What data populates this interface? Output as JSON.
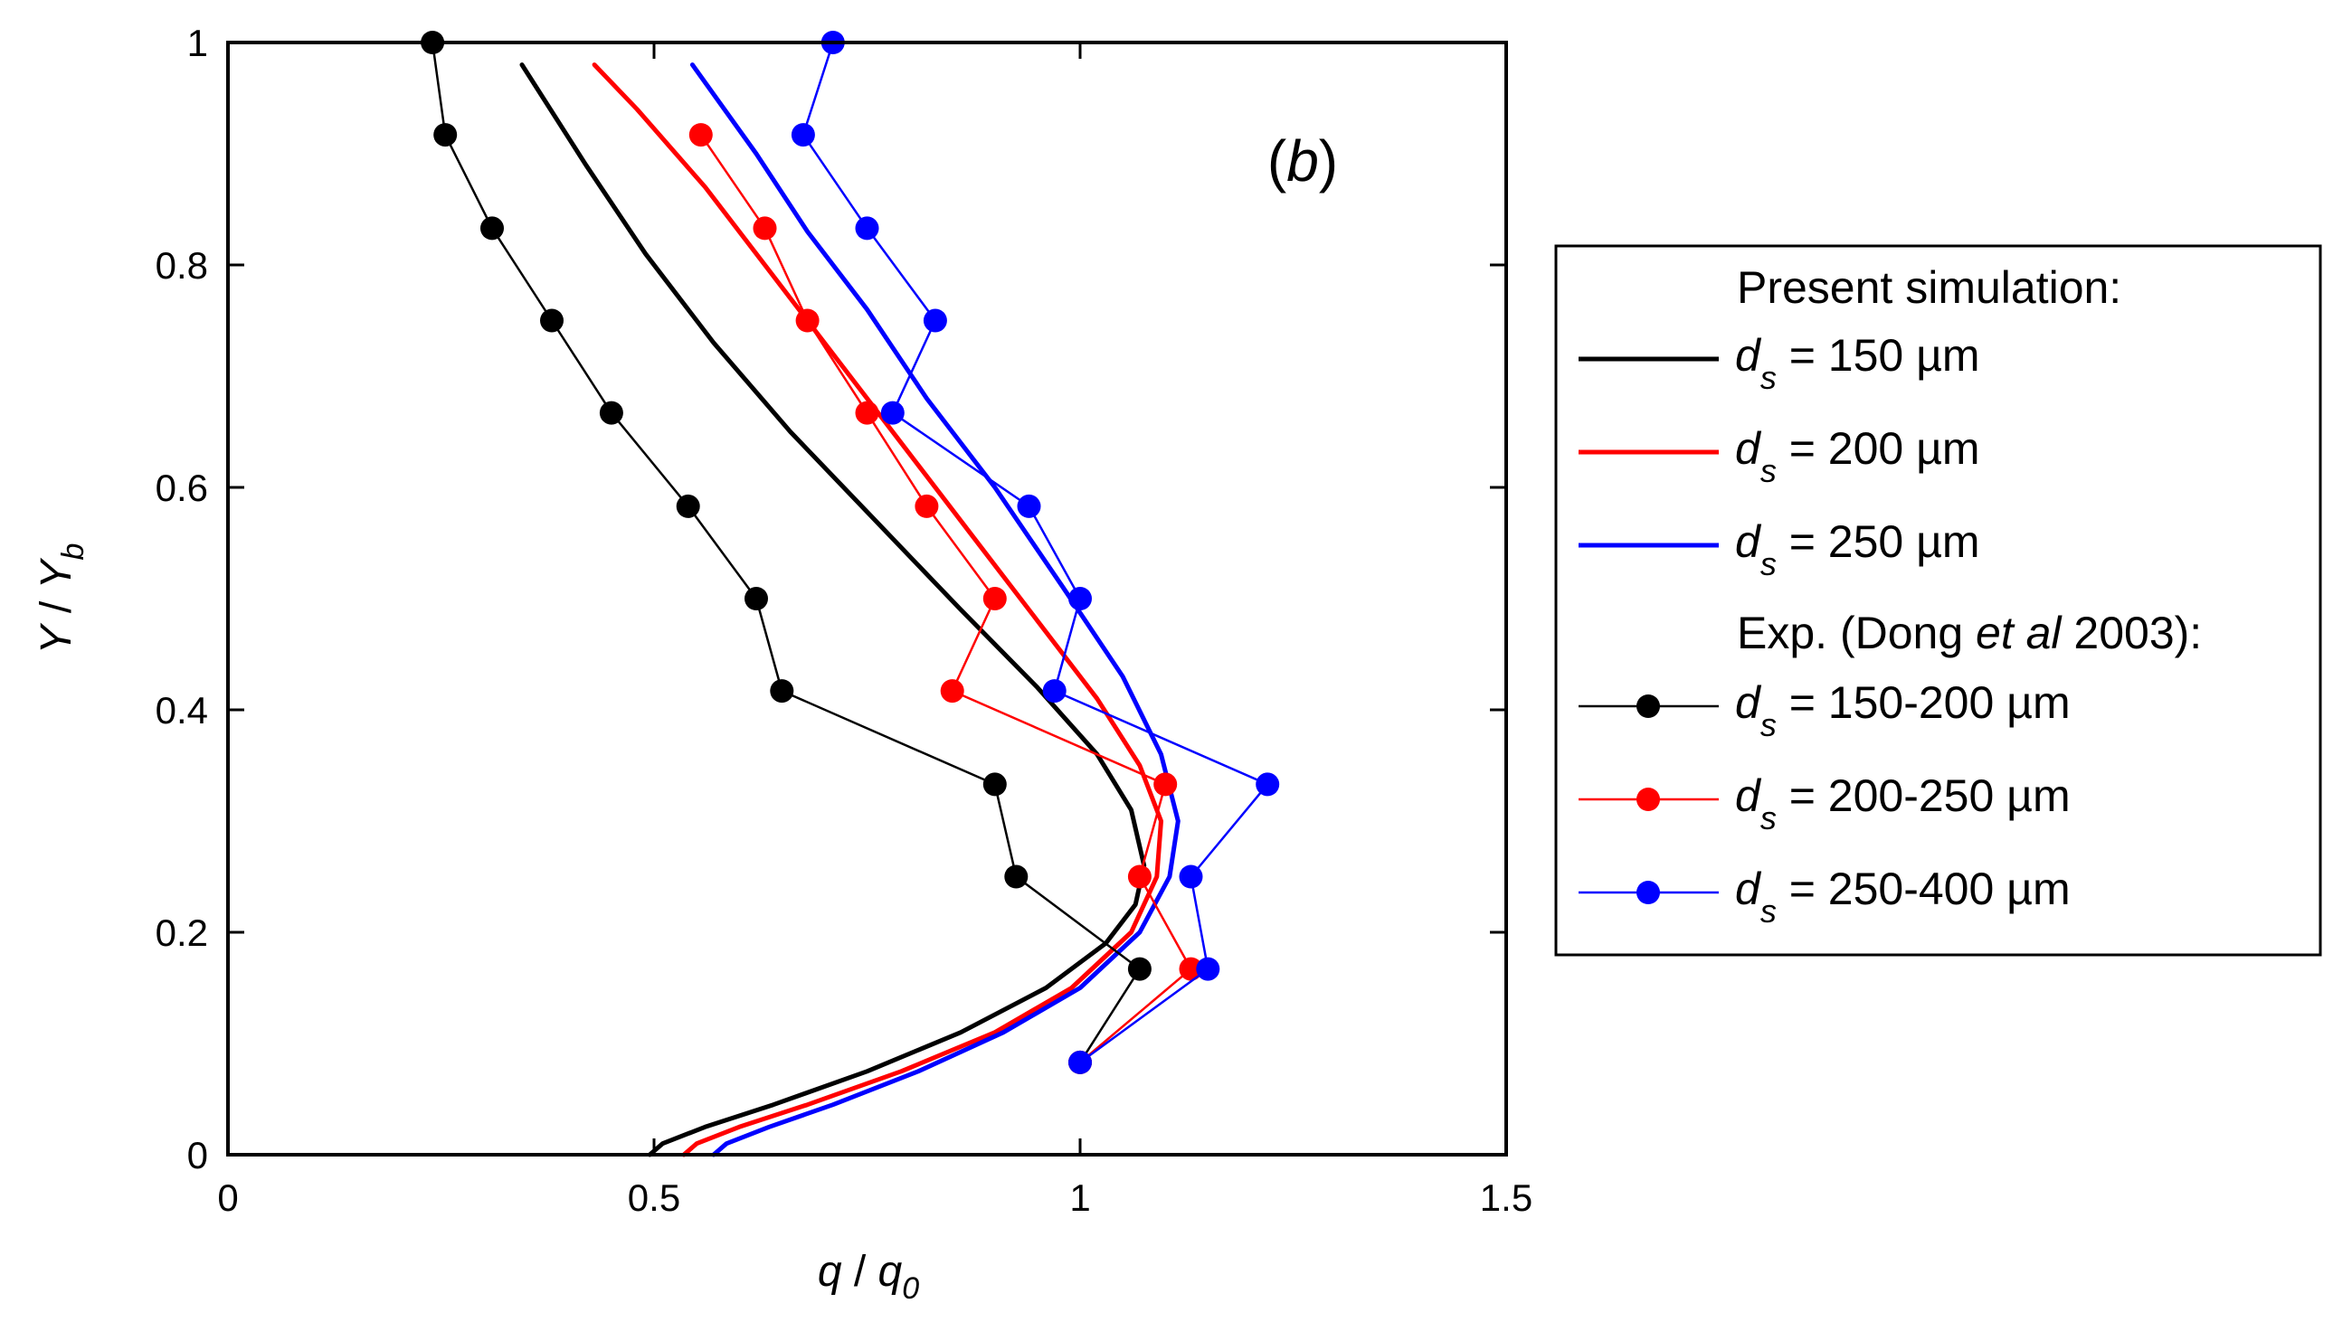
{
  "chart_data": {
    "type": "line",
    "panel_label": {
      "open": "(",
      "letter": "b",
      "close": ")"
    },
    "xlabel": {
      "main": "q",
      "sep": " / ",
      "main2": "q",
      "sub": "0"
    },
    "ylabel": {
      "main": "Y",
      "sep": " / ",
      "main2": "Y",
      "sub": "b"
    },
    "xlim": [
      0,
      1.5
    ],
    "ylim": [
      0,
      1
    ],
    "xticks": [
      0,
      0.5,
      1,
      1.5
    ],
    "xtick_labels": [
      "0",
      "0.5",
      "1",
      "1.5"
    ],
    "yticks": [
      0,
      0.2,
      0.4,
      0.6,
      0.8,
      1
    ],
    "ytick_labels": [
      "0",
      "0.2",
      "0.4",
      "0.6",
      "0.8",
      "1"
    ],
    "grid": false,
    "legend": {
      "position": "outside-right",
      "sim_header": "Present simulation:",
      "exp_header": {
        "pre": "Exp. (Dong ",
        "ital": "et al",
        "post": " 2003):"
      },
      "entries": [
        {
          "key": "sim150",
          "d": "d",
          "s": "s",
          "text": " = 150 µm"
        },
        {
          "key": "sim200",
          "d": "d",
          "s": "s",
          "text": " = 200 µm"
        },
        {
          "key": "sim250",
          "d": "d",
          "s": "s",
          "text": " = 250 µm"
        },
        {
          "key": "exp150",
          "d": "d",
          "s": "s",
          "text": " = 150-200 µm"
        },
        {
          "key": "exp200",
          "d": "d",
          "s": "s",
          "text": " = 200-250 µm"
        },
        {
          "key": "exp250",
          "d": "d",
          "s": "s",
          "text": " = 250-400 µm"
        }
      ]
    },
    "series": [
      {
        "key": "sim150",
        "name": "Present simulation d_s = 150 µm",
        "kind": "line",
        "color": "#000000",
        "points": [
          [
            0.495,
            0
          ],
          [
            0.51,
            0.01
          ],
          [
            0.56,
            0.025
          ],
          [
            0.64,
            0.045
          ],
          [
            0.75,
            0.075
          ],
          [
            0.86,
            0.11
          ],
          [
            0.96,
            0.15
          ],
          [
            1.03,
            0.19
          ],
          [
            1.065,
            0.225
          ],
          [
            1.075,
            0.26
          ],
          [
            1.06,
            0.31
          ],
          [
            1.02,
            0.36
          ],
          [
            0.95,
            0.42
          ],
          [
            0.86,
            0.49
          ],
          [
            0.76,
            0.57
          ],
          [
            0.66,
            0.65
          ],
          [
            0.57,
            0.73
          ],
          [
            0.49,
            0.81
          ],
          [
            0.42,
            0.89
          ],
          [
            0.345,
            0.98
          ]
        ]
      },
      {
        "key": "sim200",
        "name": "Present simulation d_s = 200 µm",
        "kind": "line",
        "color": "#ff0000",
        "points": [
          [
            0.535,
            0
          ],
          [
            0.55,
            0.01
          ],
          [
            0.6,
            0.025
          ],
          [
            0.68,
            0.045
          ],
          [
            0.79,
            0.075
          ],
          [
            0.9,
            0.11
          ],
          [
            0.99,
            0.15
          ],
          [
            1.06,
            0.2
          ],
          [
            1.09,
            0.25
          ],
          [
            1.095,
            0.3
          ],
          [
            1.07,
            0.35
          ],
          [
            1.02,
            0.41
          ],
          [
            0.95,
            0.48
          ],
          [
            0.87,
            0.56
          ],
          [
            0.79,
            0.64
          ],
          [
            0.71,
            0.72
          ],
          [
            0.63,
            0.8
          ],
          [
            0.56,
            0.87
          ],
          [
            0.48,
            0.94
          ],
          [
            0.43,
            0.98
          ]
        ]
      },
      {
        "key": "sim250",
        "name": "Present simulation d_s = 250 µm",
        "kind": "line",
        "color": "#0000ff",
        "points": [
          [
            0.57,
            0
          ],
          [
            0.585,
            0.01
          ],
          [
            0.635,
            0.025
          ],
          [
            0.71,
            0.045
          ],
          [
            0.81,
            0.075
          ],
          [
            0.91,
            0.11
          ],
          [
            1,
            0.15
          ],
          [
            1.07,
            0.2
          ],
          [
            1.105,
            0.25
          ],
          [
            1.115,
            0.3
          ],
          [
            1.095,
            0.36
          ],
          [
            1.05,
            0.43
          ],
          [
            0.98,
            0.51
          ],
          [
            0.9,
            0.6
          ],
          [
            0.82,
            0.68
          ],
          [
            0.75,
            0.76
          ],
          [
            0.68,
            0.83
          ],
          [
            0.62,
            0.9
          ],
          [
            0.545,
            0.98
          ]
        ]
      },
      {
        "key": "exp150",
        "name": "Exp. (Dong et al 2003) d_s = 150-200 µm",
        "kind": "marker-line",
        "color": "#000000",
        "points": [
          [
            1,
            0.083
          ],
          [
            1.07,
            0.167
          ],
          [
            0.925,
            0.25
          ],
          [
            0.9,
            0.333
          ],
          [
            0.65,
            0.417
          ],
          [
            0.62,
            0.5
          ],
          [
            0.54,
            0.583
          ],
          [
            0.45,
            0.667
          ],
          [
            0.38,
            0.75
          ],
          [
            0.31,
            0.833
          ],
          [
            0.255,
            0.917
          ],
          [
            0.24,
            1.0
          ]
        ]
      },
      {
        "key": "exp200",
        "name": "Exp. (Dong et al 2003) d_s = 200-250 µm",
        "kind": "marker-line",
        "color": "#ff0000",
        "points": [
          [
            1,
            0.083
          ],
          [
            1.13,
            0.167
          ],
          [
            1.07,
            0.25
          ],
          [
            1.1,
            0.333
          ],
          [
            0.85,
            0.417
          ],
          [
            0.9,
            0.5
          ],
          [
            0.82,
            0.583
          ],
          [
            0.75,
            0.667
          ],
          [
            0.68,
            0.75
          ],
          [
            0.63,
            0.833
          ],
          [
            0.555,
            0.917
          ]
        ]
      },
      {
        "key": "exp250",
        "name": "Exp. (Dong et al 2003) d_s = 250-400 µm",
        "kind": "marker-line",
        "color": "#0000ff",
        "points": [
          [
            1,
            0.083
          ],
          [
            1.15,
            0.167
          ],
          [
            1.13,
            0.25
          ],
          [
            1.22,
            0.333
          ],
          [
            0.97,
            0.417
          ],
          [
            1,
            0.5
          ],
          [
            0.94,
            0.583
          ],
          [
            0.78,
            0.667
          ],
          [
            0.83,
            0.75
          ],
          [
            0.75,
            0.833
          ],
          [
            0.675,
            0.917
          ],
          [
            0.71,
            1.0
          ]
        ]
      }
    ]
  }
}
